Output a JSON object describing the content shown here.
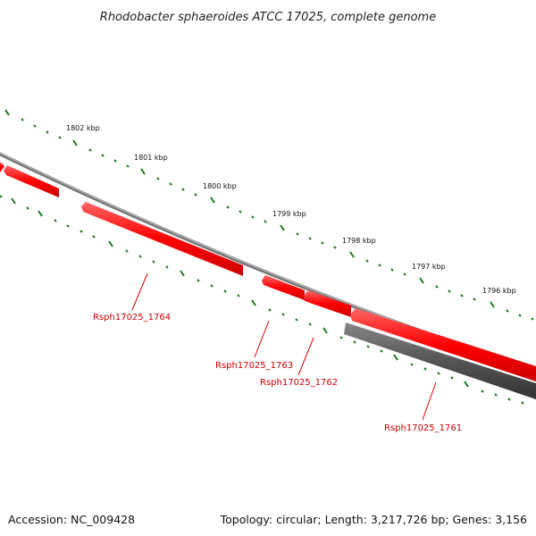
{
  "title": "Rhodobacter sphaeroides ATCC 17025, complete genome",
  "tick_labels": [
    "1802 kbp",
    "1801 kbp",
    "1800 kbp",
    "1799 kbp",
    "1798 kbp",
    "1797 kbp",
    "1796 kbp"
  ],
  "genes": [
    {
      "label": "Rsph17025_1764"
    },
    {
      "label": "Rsph17025_1763"
    },
    {
      "label": "Rsph17025_1762"
    },
    {
      "label": "Rsph17025_1761"
    }
  ],
  "footer": {
    "accession": "Accession: NC_009428",
    "summary": "Topology: circular; Length: 3,217,726 bp; Genes: 3,156"
  },
  "colors": {
    "forward_gene": "#ff0000",
    "reverse_gene": "#555555",
    "backbone": "#888888",
    "tick": "#1a7a1a",
    "label": "#cc0000"
  }
}
